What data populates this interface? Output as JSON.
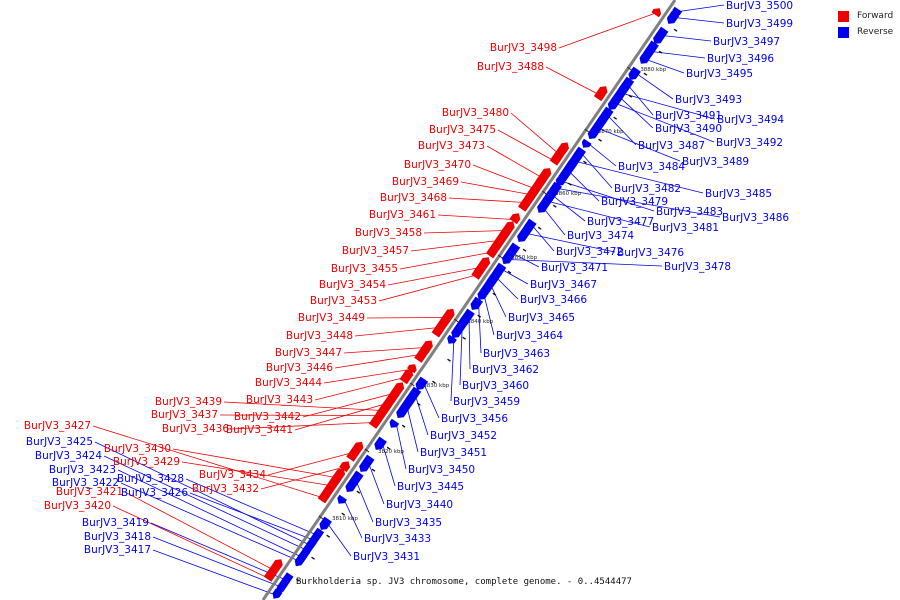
{
  "caption": "Burkholderia sp. JV3 chromosome, complete genome. - 0..4544477",
  "legend": [
    {
      "label": "Forward",
      "color": "#ee0000"
    },
    {
      "label": "Reverse",
      "color": "#0000ee"
    }
  ],
  "colors": {
    "forward": "#ee0000",
    "reverse": "#0000ee",
    "backbone": "#808080"
  },
  "ticks": [
    "3810 kbp",
    "3820 kbp",
    "3830 kbp",
    "3840 kbp",
    "3850 kbp",
    "3860 kbp",
    "3870 kbp",
    "3880 kbp"
  ],
  "forward_genes": [
    "BurJV3_3498",
    "BurJV3_3488",
    "BurJV3_3480",
    "BurJV3_3475",
    "BurJV3_3473",
    "BurJV3_3470",
    "BurJV3_3469",
    "BurJV3_3468",
    "BurJV3_3461",
    "BurJV3_3458",
    "BurJV3_3457",
    "BurJV3_3455",
    "BurJV3_3454",
    "BurJV3_3453",
    "BurJV3_3449",
    "BurJV3_3448",
    "BurJV3_3447",
    "BurJV3_3446",
    "BurJV3_3444",
    "BurJV3_3443",
    "BurJV3_3442",
    "BurJV3_3441",
    "BurJV3_3439",
    "BurJV3_3437",
    "BurJV3_3436",
    "BurJV3_3434",
    "BurJV3_3432",
    "BurJV3_3430",
    "BurJV3_3429",
    "BurJV3_3427",
    "BurJV3_3421",
    "BurJV3_3420"
  ],
  "reverse_genes_right": [
    "BurJV3_3500",
    "BurJV3_3499",
    "BurJV3_3497",
    "BurJV3_3496",
    "BurJV3_3495",
    "BurJV3_3493",
    "BurJV3_3491",
    "BurJV3_3494",
    "BurJV3_3490",
    "BurJV3_3492",
    "BurJV3_3487",
    "BurJV3_3489",
    "BurJV3_3484",
    "BurJV3_3482",
    "BurJV3_3485",
    "BurJV3_3479",
    "BurJV3_3483",
    "BurJV3_3486",
    "BurJV3_3477",
    "BurJV3_3481",
    "BurJV3_3474",
    "BurJV3_3472",
    "BurJV3_3476",
    "BurJV3_3471",
    "BurJV3_3478",
    "BurJV3_3467",
    "BurJV3_3466",
    "BurJV3_3465",
    "BurJV3_3464",
    "BurJV3_3463",
    "BurJV3_3462",
    "BurJV3_3460",
    "BurJV3_3459",
    "BurJV3_3456",
    "BurJV3_3452",
    "BurJV3_3451",
    "BurJV3_3450",
    "BurJV3_3445",
    "BurJV3_3440",
    "BurJV3_3435",
    "BurJV3_3433",
    "BurJV3_3431"
  ],
  "reverse_genes_left": [
    "BurJV3_3425",
    "BurJV3_3424",
    "BurJV3_3423",
    "BurJV3_3428",
    "BurJV3_3422",
    "BurJV3_3426",
    "BurJV3_3419",
    "BurJV3_3418",
    "BurJV3_3417"
  ]
}
